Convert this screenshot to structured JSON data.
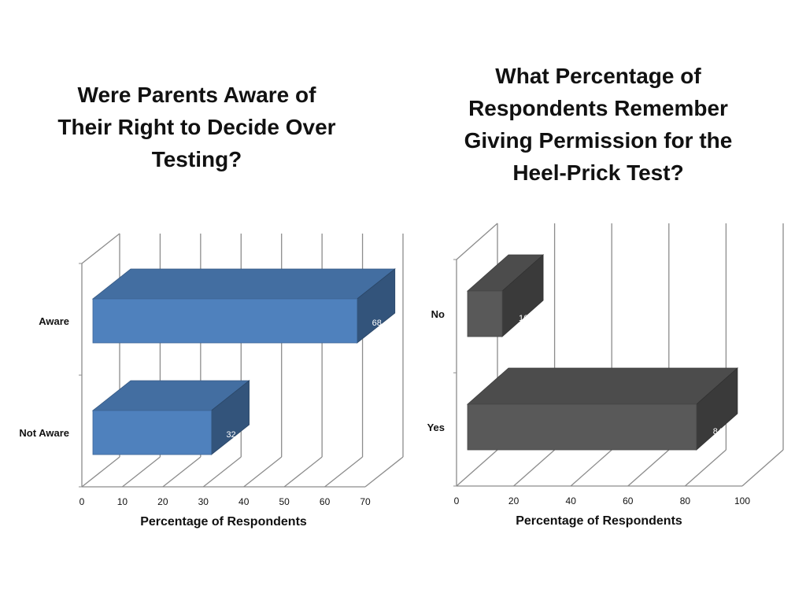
{
  "chart_data": [
    {
      "type": "bar",
      "orientation": "horizontal",
      "title": "Were Parents Aware of Their Right to Decide Over Testing?",
      "categories": [
        "Aware",
        "Not Aware"
      ],
      "values": [
        68,
        32
      ],
      "data_labels": [
        "68",
        "32"
      ],
      "xlabel": "Percentage of Respondents",
      "ylabel": "",
      "xlim": [
        0,
        70
      ],
      "xticks": [
        0,
        10,
        20,
        30,
        40,
        50,
        60,
        70
      ],
      "grid": true,
      "three_d": true,
      "bar_color": "#4f81bd",
      "label_color": "#ffffff"
    },
    {
      "type": "bar",
      "orientation": "horizontal",
      "title": "What Percentage of Respondents Remember Giving Permission for the Heel-Prick Test?",
      "categories": [
        "No",
        "Yes"
      ],
      "values": [
        16,
        84
      ],
      "data_labels": [
        "16",
        "84"
      ],
      "xlabel": "Percentage of Respondents",
      "ylabel": "",
      "xlim": [
        0,
        100
      ],
      "xticks": [
        0,
        20,
        40,
        60,
        80,
        100
      ],
      "grid": true,
      "three_d": true,
      "bar_color": "#595959",
      "label_color": "#ffffff"
    }
  ]
}
